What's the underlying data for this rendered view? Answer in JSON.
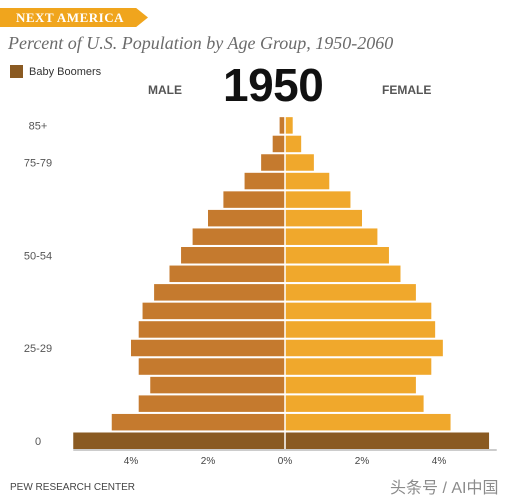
{
  "header": {
    "banner": "NEXT AMERICA",
    "title": "Percent of U.S. Population by Age Group, 1950-2060",
    "year": "1950"
  },
  "legend": {
    "label": "Baby Boomers",
    "color": "#8a5a22"
  },
  "labels": {
    "male": "MALE",
    "female": "FEMALE"
  },
  "footer": {
    "source": "PEW RESEARCH CENTER",
    "watermark": "头条号 / AI中国"
  },
  "colors": {
    "male": "#c57a2e",
    "female": "#f0a82c",
    "boomer": "#8a5a22",
    "banner": "#f0a51d"
  },
  "chart_data": {
    "type": "bar",
    "orientation": "horizontal-population-pyramid",
    "categories": [
      "0",
      "5-9",
      "10-14",
      "15-19",
      "20-24",
      "25-29",
      "30-34",
      "35-39",
      "40-44",
      "45-49",
      "50-54",
      "55-59",
      "60-64",
      "65-69",
      "70-74",
      "75-79",
      "80-84",
      "85+"
    ],
    "y_tick_labels": [
      "0",
      "25-29",
      "50-54",
      "75-79",
      "85+"
    ],
    "series": [
      {
        "name": "MALE",
        "values": [
          5.5,
          4.5,
          3.8,
          3.5,
          3.8,
          4.0,
          3.8,
          3.7,
          3.4,
          3.0,
          2.7,
          2.4,
          2.0,
          1.6,
          1.05,
          0.62,
          0.32,
          0.14
        ]
      },
      {
        "name": "FEMALE",
        "values": [
          5.3,
          4.3,
          3.6,
          3.4,
          3.8,
          4.1,
          3.9,
          3.8,
          3.4,
          3.0,
          2.7,
          2.4,
          2.0,
          1.7,
          1.15,
          0.75,
          0.42,
          0.2
        ]
      }
    ],
    "boomer_categories": [
      "0"
    ],
    "xlim": [
      -5.5,
      5.5
    ],
    "x_ticks": [
      -4,
      -2,
      0,
      2,
      4
    ],
    "x_tick_labels": [
      "4%",
      "2%",
      "0%",
      "2%",
      "4%"
    ]
  }
}
